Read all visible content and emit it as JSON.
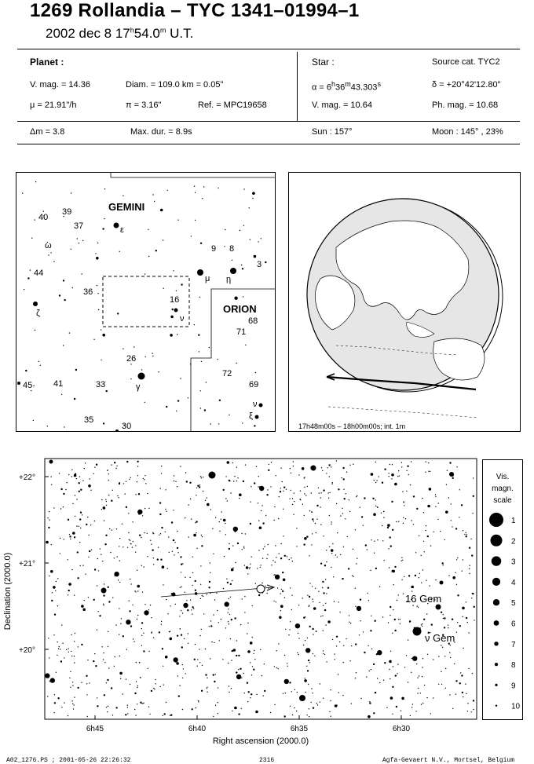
{
  "header": {
    "title": "1269 Rollandia  –  TYC 1341–01994–1",
    "date_prefix": "2002 dec  8  17",
    "time_h": "h",
    "time_mid": "54.0",
    "time_m": "m",
    "time_suffix": " U.T."
  },
  "planet": {
    "heading": "Planet :",
    "vmag": "V. mag. = 14.36",
    "diam": "Diam. = 109.0 km = 0.05\"",
    "mu": "μ = 21.91\"/h",
    "pi": "π =  3.16\"",
    "ref": "Ref. = MPC19658"
  },
  "star": {
    "heading": "Star :",
    "source": "Source cat.  TYC2",
    "alpha_prefix": "α = 6",
    "alpha_h": "h",
    "alpha_mid": "36",
    "alpha_m": "m",
    "alpha_s_val": "43.303",
    "alpha_s": "s",
    "delta": "δ = +20°42'12.80\"",
    "vmag": "V. mag. = 10.64",
    "phmag": "Ph. mag. = 10.68"
  },
  "summary": {
    "dm": "Δm = 3.8",
    "maxdur": "Max. dur. = 8.9s",
    "sun": "Sun : 157°",
    "moon": "Moon : 145° , 23%"
  },
  "constellation_map": {
    "labels": [
      {
        "id": "gemini",
        "text": "GEMINI"
      },
      {
        "id": "orion",
        "text": "ORION"
      }
    ],
    "star_labels": [
      "40",
      "39",
      "37",
      "ε",
      "ω",
      "9",
      "8",
      "3",
      "44",
      "μ",
      "η",
      "36",
      "16",
      "ν",
      "ζ",
      "68",
      "71",
      "26",
      "72",
      "45",
      "41",
      "33",
      "γ",
      "69",
      "ν",
      "ξ",
      "35",
      "30"
    ]
  },
  "globe": {
    "caption": "17h48m00s – 18h00m00s; int.  1m"
  },
  "finder_chart": {
    "dec_ticks": [
      "+22°",
      "+21°",
      "+20°"
    ],
    "ra_ticks": [
      "6h45",
      "6h40",
      "6h35",
      "6h30"
    ],
    "xlabel": "Right ascension (2000.0)",
    "ylabel": "Declination (2000.0)",
    "named_stars": [
      "16 Gem",
      "ν Gem"
    ]
  },
  "mag_scale": {
    "title_lines": [
      "Vis.",
      "magn.",
      "scale"
    ],
    "values": [
      "1",
      "2",
      "3",
      "4",
      "5",
      "6",
      "7",
      "8",
      "9",
      "10"
    ]
  },
  "footer": {
    "left": "A02_1276.PS ; 2001-05-26 22:26:32",
    "center": "2316",
    "right": "Agfa-Gevaert N.V., Mortsel, Belgium"
  }
}
